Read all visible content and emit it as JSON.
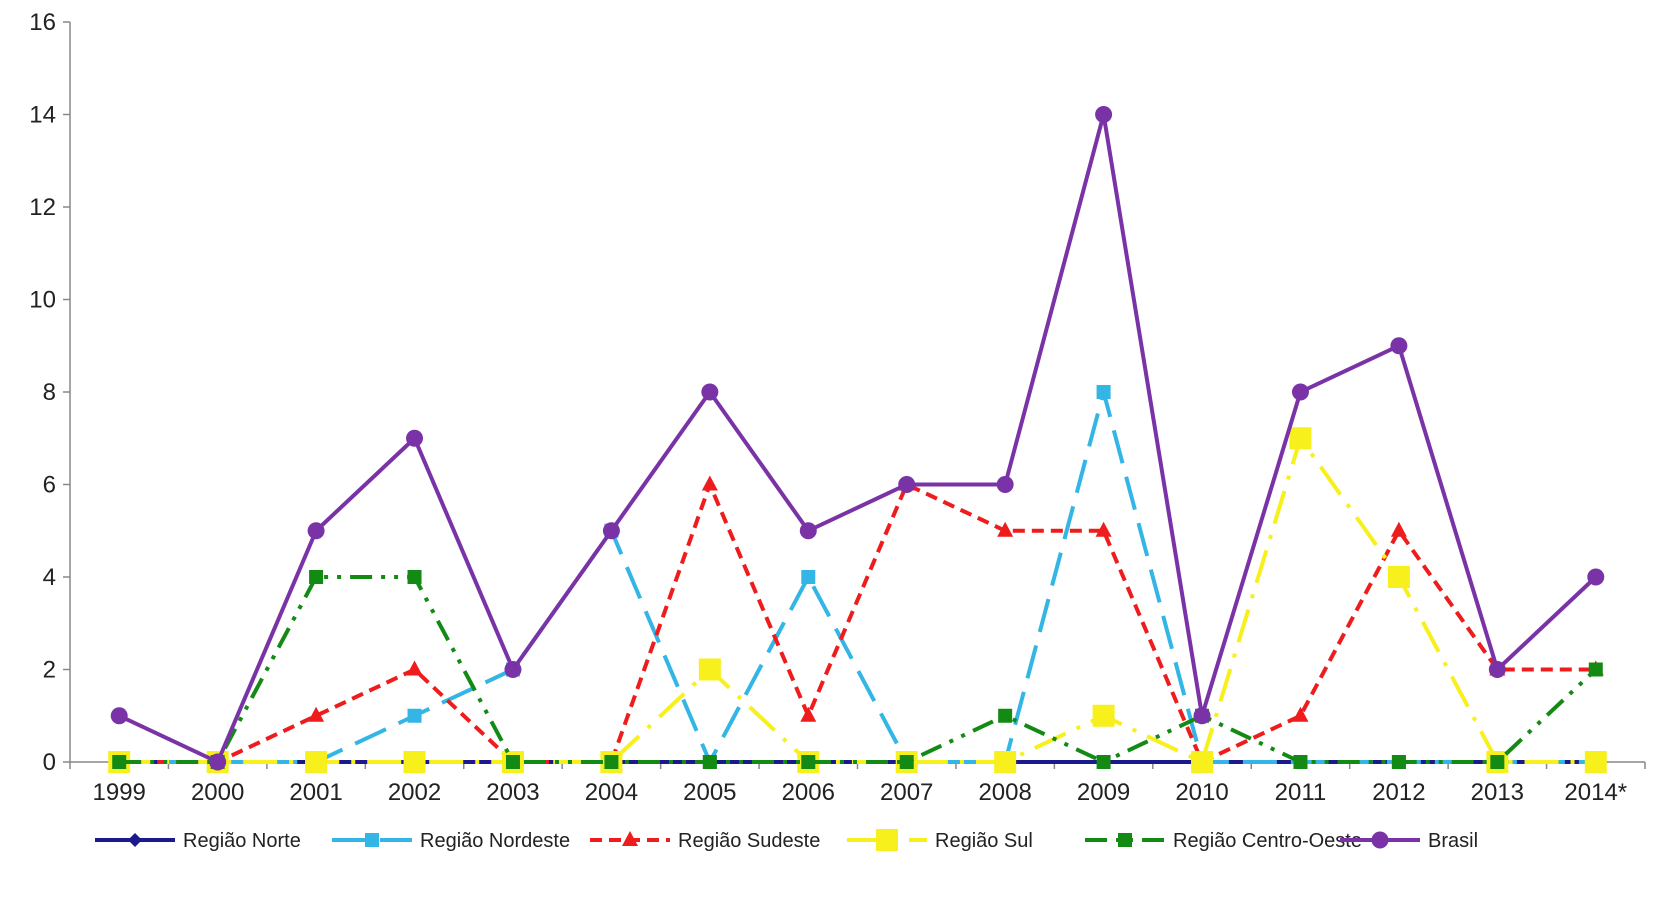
{
  "chart_data": {
    "type": "line",
    "title": "",
    "xlabel": "",
    "ylabel": "",
    "categories": [
      "1999",
      "2000",
      "2001",
      "2002",
      "2003",
      "2004",
      "2005",
      "2006",
      "2007",
      "2008",
      "2009",
      "2010",
      "2011",
      "2012",
      "2013",
      "2014*"
    ],
    "y_ticks": [
      "0",
      "2",
      "4",
      "6",
      "8",
      "10",
      "12",
      "14",
      "16"
    ],
    "ylim": [
      0,
      16
    ],
    "grid": false,
    "legend_position": "bottom",
    "series": [
      {
        "name": "Região Norte",
        "color": "#1a1a8c",
        "dash": "solid",
        "marker": "diamond",
        "values": [
          0,
          0,
          0,
          0,
          0,
          0,
          0,
          0,
          0,
          0,
          0,
          0,
          0,
          0,
          0,
          0
        ]
      },
      {
        "name": "Região Nordeste",
        "color": "#33b5e5",
        "dash": "longdash",
        "marker": "square",
        "values": [
          0,
          0,
          0,
          1,
          2,
          5,
          0,
          4,
          0,
          0,
          8,
          0,
          0,
          0,
          0,
          0
        ]
      },
      {
        "name": "Região Sudeste",
        "color": "#ee1c1c",
        "dash": "shortdash",
        "marker": "triangle",
        "values": [
          0,
          0,
          1,
          2,
          0,
          0,
          6,
          1,
          6,
          5,
          5,
          0,
          1,
          5,
          2,
          2
        ]
      },
      {
        "name": "Região Sul",
        "color": "#f7f01c",
        "dash": "dashdot",
        "marker": "bigsquare",
        "values": [
          0,
          0,
          0,
          0,
          0,
          0,
          2,
          0,
          0,
          0,
          1,
          0,
          7,
          4,
          0,
          0
        ]
      },
      {
        "name": "Região Centro-Oeste",
        "color": "#138a13",
        "dash": "dashdotdot",
        "marker": "square",
        "values": [
          0,
          0,
          4,
          4,
          0,
          0,
          0,
          0,
          0,
          1,
          0,
          1,
          0,
          0,
          0,
          2
        ]
      },
      {
        "name": "Brasil",
        "color": "#7a33a6",
        "dash": "solid",
        "marker": "circle",
        "values": [
          1,
          0,
          5,
          7,
          2,
          5,
          8,
          5,
          6,
          6,
          14,
          1,
          8,
          9,
          2,
          4
        ]
      }
    ]
  }
}
